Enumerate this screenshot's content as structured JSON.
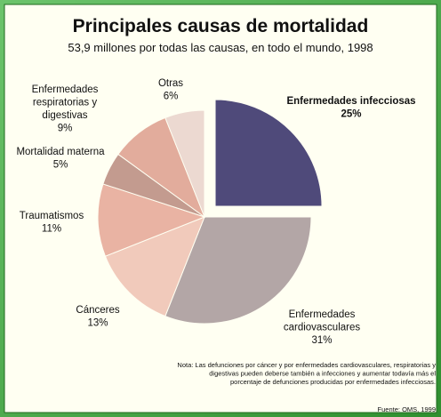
{
  "chart_data": {
    "type": "pie",
    "title": "Principales causas de mortalidad",
    "subtitle": "53,9 millones por todas las causas, en todo el mundo, 1998",
    "categories": [
      [
        "Enfermedades infecciosas"
      ],
      [
        "Enfermedades",
        "cardiovasculares"
      ],
      [
        "Cánceres"
      ],
      [
        "Traumatismos"
      ],
      [
        "Mortalidad materna"
      ],
      [
        "Enfermedades",
        "respiratorias y",
        "digestivas"
      ],
      [
        "Otras"
      ]
    ],
    "values": [
      25,
      31,
      13,
      11,
      5,
      9,
      6
    ],
    "value_labels": [
      "25%",
      "31%",
      "13%",
      "11%",
      "5%",
      "9%",
      "6%"
    ],
    "colors": [
      "#4f4a7a",
      "#b3a6a6",
      "#f1cabb",
      "#e9b3a3",
      "#c39b8f",
      "#e2ac9c",
      "#ecd9d1"
    ],
    "exploded": [
      0
    ],
    "note": [
      "Nota: Las defunciones por cáncer y por enfermedades cardiovasculares, respiratorias y",
      "digestivas pueden deberse también a infecciones y aumentar todavía más el",
      "porcentaje de defunciones producidas por enfermedades infecciosas."
    ],
    "source": "Fuente: OMS, 1999"
  }
}
